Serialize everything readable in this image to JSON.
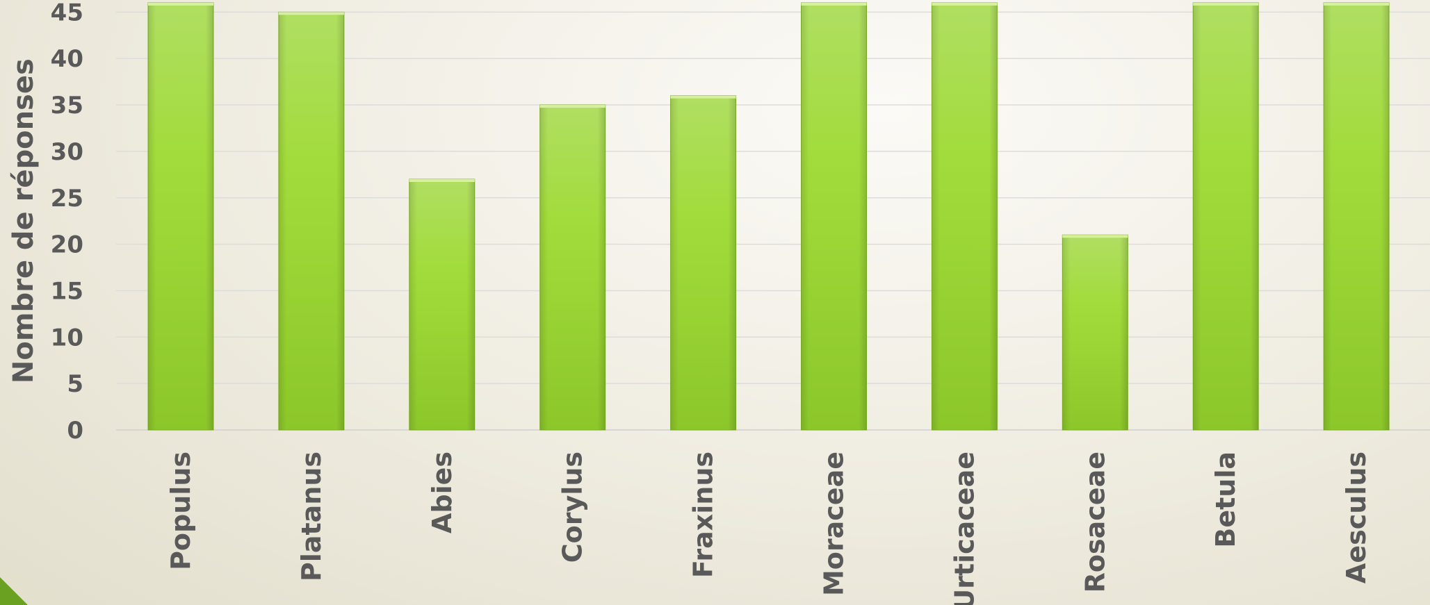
{
  "chart_data": {
    "type": "bar",
    "categories": [
      "Populus",
      "Platanus",
      "Abies",
      "Corylus",
      "Fraxinus",
      "Moraceae",
      "Urticaceae",
      "Rosaceae",
      "Betula",
      "Aesculus"
    ],
    "values": [
      46,
      45,
      27,
      35,
      36,
      46,
      46,
      21,
      46,
      46
    ],
    "title": "",
    "xlabel": "",
    "ylabel": "Nombre de réponses",
    "ylim": [
      0,
      45
    ],
    "yticks": [
      0,
      5,
      10,
      15,
      20,
      25,
      30,
      35,
      40,
      45
    ],
    "grid": true,
    "legend": "none",
    "bar_color": "#9fd83a",
    "bar_color_dark": "#86bf26"
  }
}
